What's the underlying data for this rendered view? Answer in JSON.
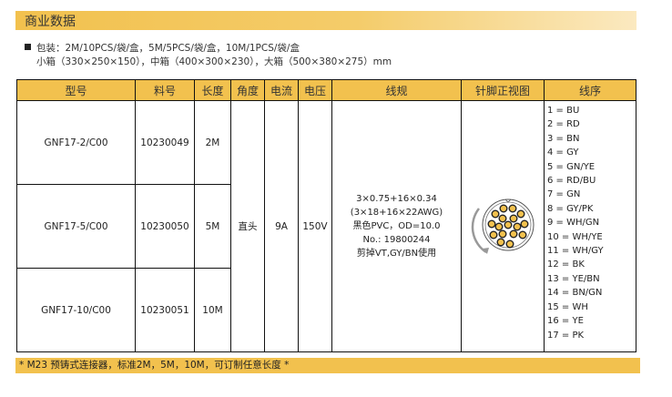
{
  "section_title": "商业数据",
  "packaging": {
    "line1": "包装：2M/10PCS/袋/盒，5M/5PCS/袋/盒，10M/1PCS/袋/盒",
    "line2": "小箱（330×250×150），中箱（400×300×230），大箱（500×380×275）mm"
  },
  "table": {
    "headers": [
      "型号",
      "料号",
      "长度",
      "角度",
      "电流",
      "电压",
      "线规",
      "针脚正视图",
      "线序"
    ],
    "rows": [
      {
        "model": "GNF17-2/C00",
        "part": "10230049",
        "length": "2M"
      },
      {
        "model": "GNF17-5/C00",
        "part": "10230050",
        "length": "5M"
      },
      {
        "model": "GNF17-10/C00",
        "part": "10230051",
        "length": "10M"
      }
    ],
    "angle": "直头",
    "current": "9A",
    "voltage": "150V",
    "spec": [
      "3×0.75+16×0.34",
      "(3×18+16×22AWG)",
      "黑色PVC，OD=10.0",
      "No.: 19800244",
      "剪掉VT,GY/BN使用"
    ],
    "wiring": [
      "1 = BU",
      "2 = RD",
      "3 = BN",
      "4 = GY",
      "5 = GN/YE",
      "6 = RD/BU",
      "7 = GN",
      "8 = GY/PK",
      "9 = WH/GN",
      "10 = WH/YE",
      "11 = WH/GY",
      "12 = BK",
      "13 = YE/BN",
      "14 = BN/GN",
      "15 = WH",
      "16 = YE",
      "17 = PK"
    ]
  },
  "footer_note": "* M23 预铸式连接器，标准2M，5M，10M，可订制任意长度 *",
  "colors": {
    "accent": "#f2c14e"
  }
}
